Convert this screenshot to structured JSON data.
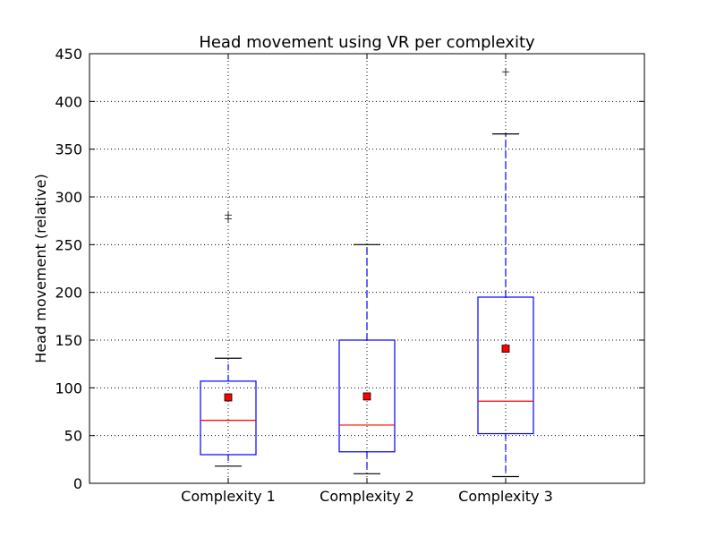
{
  "chart_data": {
    "type": "box",
    "title": "Head movement using VR per complexity",
    "xlabel": "",
    "ylabel": "Head movement (relative)",
    "ylim": [
      0,
      450
    ],
    "yticks": [
      0,
      50,
      100,
      150,
      200,
      250,
      300,
      350,
      400,
      450
    ],
    "grid": true,
    "categories": [
      "Complexity 1",
      "Complexity 2",
      "Complexity 3"
    ],
    "boxes": [
      {
        "whisker_low": 18,
        "q1": 30,
        "median": 66,
        "q3": 107,
        "whisker_high": 131,
        "mean": 90,
        "outliers": [
          277,
          281
        ]
      },
      {
        "whisker_low": 10,
        "q1": 33,
        "median": 61,
        "q3": 150,
        "whisker_high": 250,
        "mean": 91,
        "outliers": []
      },
      {
        "whisker_low": 7,
        "q1": 52,
        "median": 86,
        "q3": 195,
        "whisker_high": 366,
        "mean": 141,
        "outliers": [
          431
        ]
      }
    ],
    "colors": {
      "box": "#0000ff",
      "whisker": "#0000ff",
      "median": "#ff0000",
      "mean": "#ff0000",
      "grid": "#000000"
    }
  }
}
